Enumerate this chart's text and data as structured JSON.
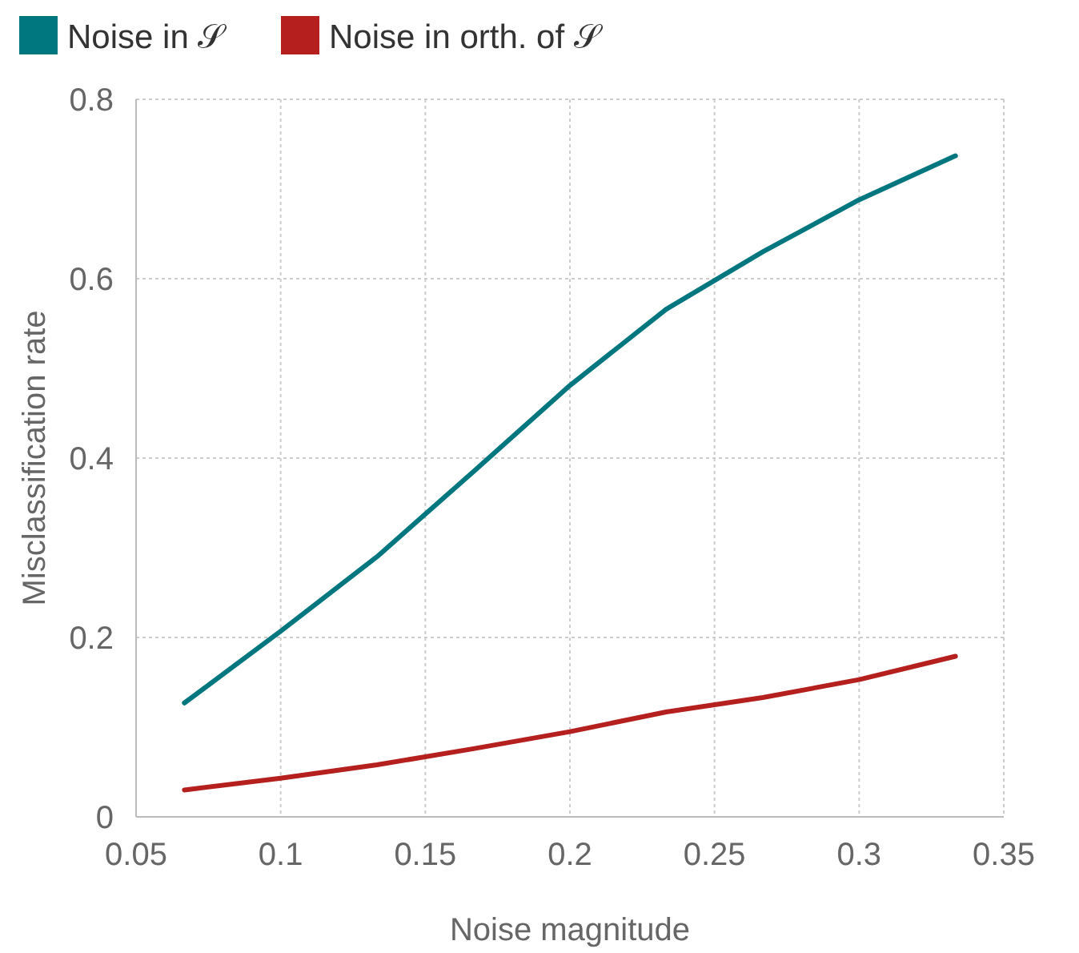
{
  "chart_data": {
    "type": "line",
    "xlabel": "Noise magnitude",
    "ylabel": "Misclassification rate",
    "x": [
      0.0667,
      0.1,
      0.1333,
      0.1667,
      0.2,
      0.2333,
      0.2667,
      0.3,
      0.3333
    ],
    "series": [
      {
        "name": "Noise in 𝒮",
        "color": "#00767f",
        "values": [
          0.127,
          0.207,
          0.29,
          0.385,
          0.481,
          0.566,
          0.63,
          0.688,
          0.737
        ]
      },
      {
        "name": "Noise in orth. of 𝒮",
        "color": "#b5201f",
        "values": [
          0.03,
          0.043,
          0.058,
          0.076,
          0.095,
          0.117,
          0.133,
          0.153,
          0.179
        ]
      }
    ],
    "xlim": [
      0.05,
      0.35
    ],
    "xticks": [
      0.05,
      0.1,
      0.15,
      0.2,
      0.25,
      0.3,
      0.35
    ],
    "ylim": [
      0,
      0.8
    ],
    "yticks": [
      0,
      0.2,
      0.4,
      0.6,
      0.8
    ],
    "grid": true,
    "legend": "top left",
    "marker": "none",
    "line_style": "solid"
  }
}
